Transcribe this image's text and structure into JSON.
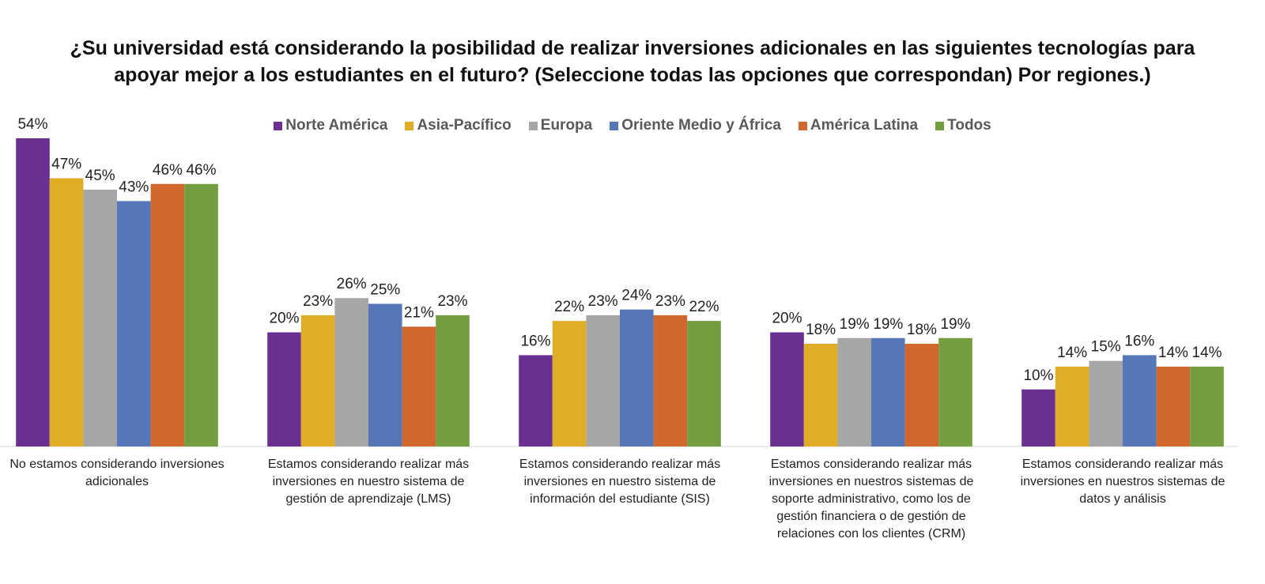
{
  "chart_data": {
    "type": "bar",
    "title": "¿Su universidad está considerando la posibilidad de realizar inversiones adicionales en las siguientes tecnologías para apoyar mejor a los estudiantes en el futuro? (Seleccione todas las opciones que correspondan) Por regiones.)",
    "categories": [
      "No estamos considerando inversiones adicionales",
      "Estamos considerando realizar más inversiones en nuestro sistema de gestión de aprendizaje (LMS)",
      "Estamos considerando realizar más inversiones en nuestro sistema de información del estudiante (SIS)",
      "Estamos considerando realizar más inversiones en nuestros sistemas de soporte administrativo, como los de gestión financiera o de gestión de relaciones con los clientes (CRM)",
      "Estamos considerando realizar más inversiones en nuestros sistemas de datos y análisis"
    ],
    "series": [
      {
        "name": "Norte América",
        "color": "#6a2f91",
        "values": [
          54,
          20,
          16,
          20,
          10
        ],
        "value_labels": [
          "54%",
          "20%",
          "16%",
          "20%",
          "10%"
        ]
      },
      {
        "name": "Asia-Pacífico",
        "color": "#e0ae26",
        "values": [
          47,
          23,
          22,
          18,
          14
        ],
        "value_labels": [
          "47%",
          "23%",
          "22%",
          "18%",
          "14%"
        ]
      },
      {
        "name": "Europa",
        "color": "#a6a6a6",
        "values": [
          45,
          26,
          23,
          19,
          15
        ],
        "value_labels": [
          "45%",
          "26%",
          "23%",
          "19%",
          "15%"
        ]
      },
      {
        "name": "Oriente Medio y África",
        "color": "#5577b8",
        "values": [
          43,
          25,
          24,
          19,
          16
        ],
        "value_labels": [
          "43%",
          "25%",
          "24%",
          "19%",
          "16%"
        ]
      },
      {
        "name": "América Latina",
        "color": "#d2672e",
        "values": [
          46,
          21,
          23,
          18,
          14
        ],
        "value_labels": [
          "46%",
          "21%",
          "23%",
          "18%",
          "14%"
        ]
      },
      {
        "name": "Todos",
        "color": "#739d3e",
        "values": [
          46,
          23,
          22,
          19,
          14
        ],
        "value_labels": [
          "46%",
          "23%",
          "22%",
          "19%",
          "14%"
        ]
      }
    ]
  }
}
